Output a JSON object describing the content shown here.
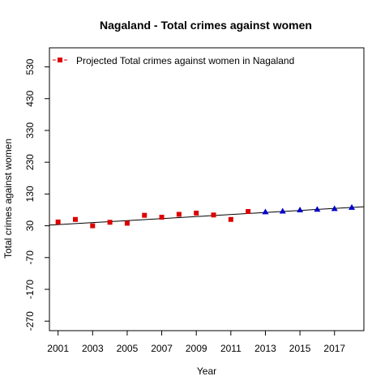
{
  "chart_data": {
    "type": "scatter",
    "title": "Nagaland  -  Total crimes against women",
    "xlabel": "Year",
    "ylabel": "Total crimes against women",
    "xlim": [
      2000.5,
      2018.7
    ],
    "ylim": [
      -300,
      590
    ],
    "x_ticks": [
      2001,
      2003,
      2005,
      2007,
      2009,
      2011,
      2013,
      2015,
      2017
    ],
    "y_ticks": [
      -270,
      -170,
      -70,
      30,
      130,
      230,
      330,
      430,
      530
    ],
    "legend": {
      "position": "top-left",
      "entries": [
        "Projected  Total crimes against women  in  Nagaland"
      ]
    },
    "series": [
      {
        "name": "Projected  Total crimes against women  in  Nagaland",
        "marker": "square",
        "color": "#dd0000",
        "points": [
          {
            "x": 2001,
            "y": 42
          },
          {
            "x": 2002,
            "y": 50
          },
          {
            "x": 2003,
            "y": 30
          },
          {
            "x": 2004,
            "y": 41
          },
          {
            "x": 2005,
            "y": 38
          },
          {
            "x": 2006,
            "y": 63
          },
          {
            "x": 2007,
            "y": 57
          },
          {
            "x": 2008,
            "y": 66
          },
          {
            "x": 2009,
            "y": 70
          },
          {
            "x": 2010,
            "y": 64
          },
          {
            "x": 2011,
            "y": 50
          },
          {
            "x": 2012,
            "y": 75
          }
        ]
      },
      {
        "marker": "triangle",
        "color": "#0000cc",
        "points": [
          {
            "x": 2013,
            "y": 74
          },
          {
            "x": 2014,
            "y": 76
          },
          {
            "x": 2015,
            "y": 80
          },
          {
            "x": 2016,
            "y": 82
          },
          {
            "x": 2017,
            "y": 84
          },
          {
            "x": 2018,
            "y": 88
          }
        ]
      }
    ],
    "trend_line": {
      "color": "#000000",
      "points": [
        {
          "x": 2000.5,
          "y": 32
        },
        {
          "x": 2018.7,
          "y": 90
        }
      ]
    }
  }
}
